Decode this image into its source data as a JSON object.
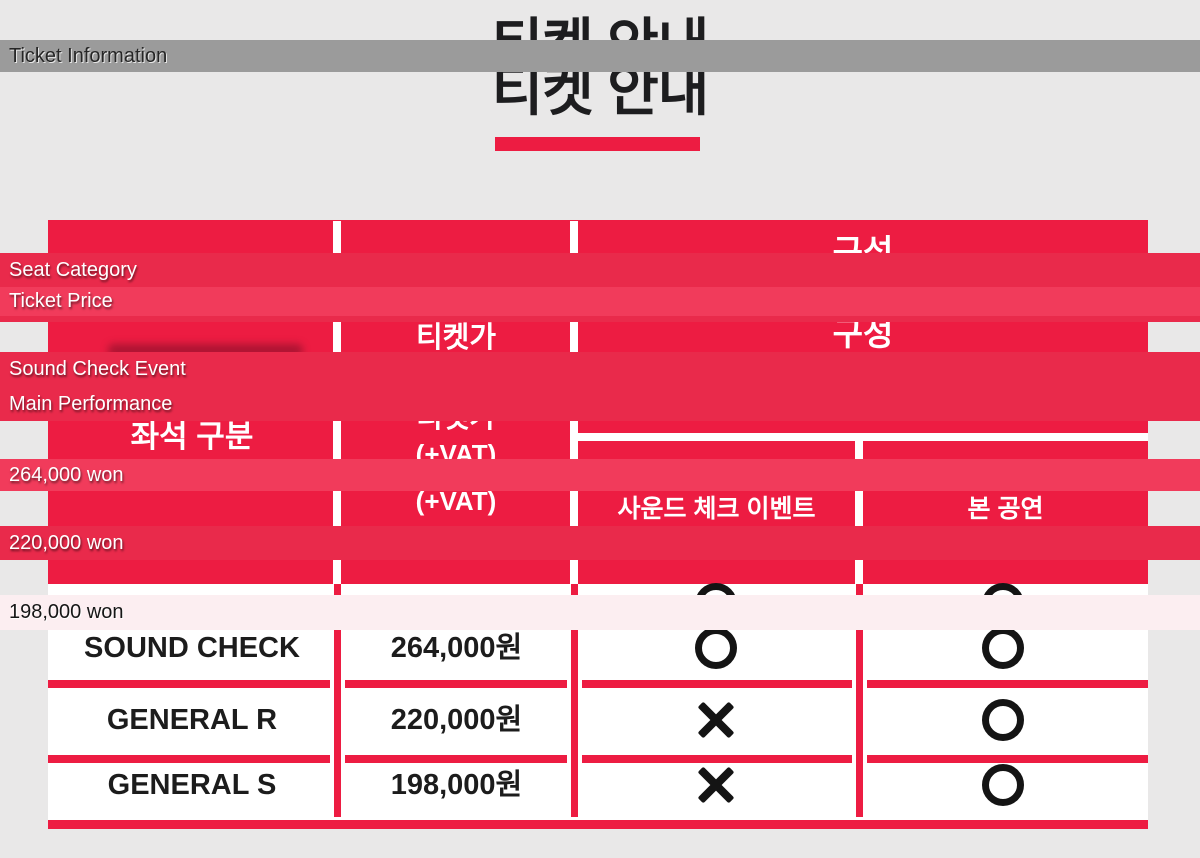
{
  "page": {
    "background_color": "#e9e8e8",
    "accent_red": "#ed1c42"
  },
  "title": {
    "text": "티켓 안내",
    "underline_color": "#ed1c42"
  },
  "translation_overlays": {
    "dark_band_color": "#e92a4b",
    "light_band_color": "#f13b5b",
    "pale_band_color": "#fceef1",
    "gray_band_color": "#9b9b9b",
    "items": [
      {
        "id": "ticket-information",
        "label": "Ticket Information"
      },
      {
        "id": "seat-category",
        "label": "Seat Category"
      },
      {
        "id": "ticket-price",
        "label": "Ticket Price"
      },
      {
        "id": "sound-check-event",
        "label": "Sound Check Event"
      },
      {
        "id": "main-performance",
        "label": "Main Performance"
      },
      {
        "id": "price-264",
        "label": "264,000 won"
      },
      {
        "id": "price-220",
        "label": "220,000 won"
      },
      {
        "id": "price-198",
        "label": "198,000 won"
      }
    ]
  },
  "table": {
    "header": {
      "seat_category": "좌석 구분",
      "ticket_price_line1": "티켓가",
      "ticket_price_line2": "(+VAT)",
      "composition": "구성",
      "sub_sound_check": "사운드 체크 이벤트",
      "sub_main_show": "본 공연"
    },
    "rows": [
      {
        "seat": "SOUND CHECK",
        "price": "264,000원",
        "sound_check": "O",
        "main_show": "O"
      },
      {
        "seat": "GENERAL R",
        "price": "220,000원",
        "sound_check": "X",
        "main_show": "O"
      },
      {
        "seat": "GENERAL S",
        "price": "198,000원",
        "sound_check": "X",
        "main_show": "O"
      }
    ],
    "grid_color": "#ed1c42",
    "body_text_color": "#1c1c1c"
  }
}
